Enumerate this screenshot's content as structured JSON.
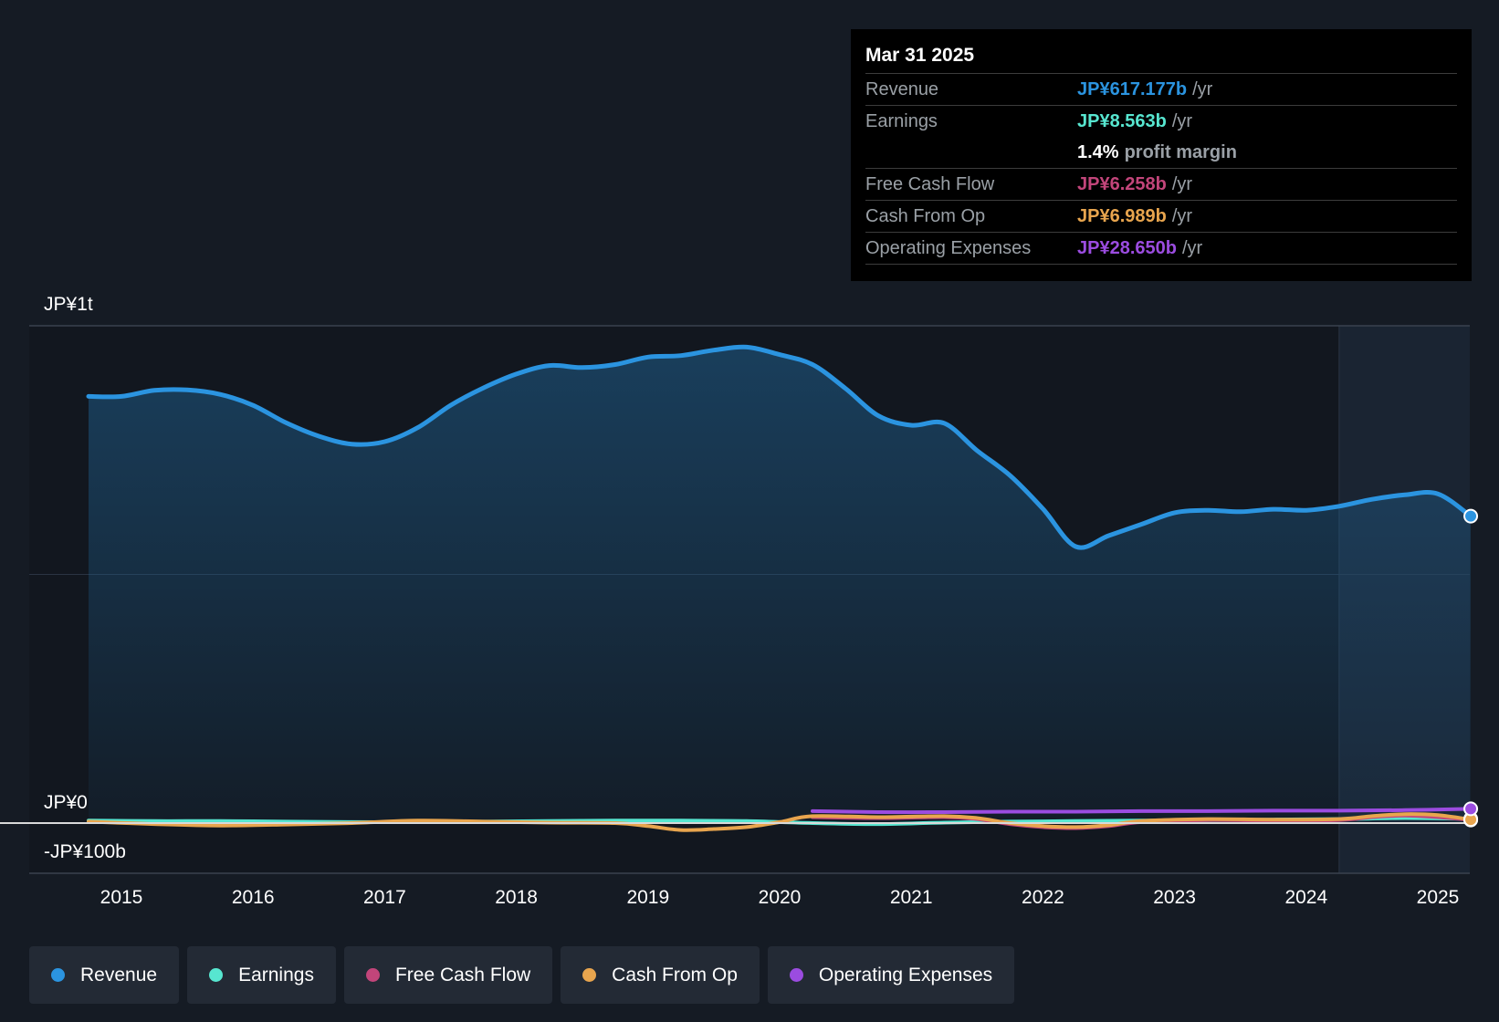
{
  "chart_data": {
    "type": "line",
    "y_axis": {
      "top_label": "JP¥1t",
      "zero_label": "JP¥0",
      "bottom_label": "-JP¥100b",
      "ylim": [
        -100,
        1000
      ],
      "unit": "JP¥ billions"
    },
    "x_ticks": [
      "2015",
      "2016",
      "2017",
      "2018",
      "2019",
      "2020",
      "2021",
      "2022",
      "2023",
      "2024",
      "2025"
    ],
    "xlim": [
      2014.3,
      2025.25
    ],
    "grid": true,
    "forecast_start": 2024.25,
    "series": [
      {
        "name": "Revenue",
        "color": "#2b94e0",
        "area": true,
        "points": [
          [
            2014.75,
            858
          ],
          [
            2015.0,
            858
          ],
          [
            2015.25,
            870
          ],
          [
            2015.5,
            871
          ],
          [
            2015.75,
            862
          ],
          [
            2016.0,
            840
          ],
          [
            2016.25,
            805
          ],
          [
            2016.5,
            778
          ],
          [
            2016.75,
            762
          ],
          [
            2017.0,
            767
          ],
          [
            2017.25,
            795
          ],
          [
            2017.5,
            840
          ],
          [
            2017.75,
            875
          ],
          [
            2018.0,
            903
          ],
          [
            2018.25,
            920
          ],
          [
            2018.5,
            916
          ],
          [
            2018.75,
            922
          ],
          [
            2019.0,
            937
          ],
          [
            2019.25,
            940
          ],
          [
            2019.5,
            951
          ],
          [
            2019.75,
            957
          ],
          [
            2020.0,
            942
          ],
          [
            2020.25,
            922
          ],
          [
            2020.5,
            874
          ],
          [
            2020.75,
            819
          ],
          [
            2021.0,
            800
          ],
          [
            2021.25,
            804
          ],
          [
            2021.5,
            749
          ],
          [
            2021.75,
            699
          ],
          [
            2022.0,
            632
          ],
          [
            2022.25,
            556
          ],
          [
            2022.5,
            578
          ],
          [
            2022.75,
            601
          ],
          [
            2023.0,
            624
          ],
          [
            2023.25,
            629
          ],
          [
            2023.5,
            626
          ],
          [
            2023.75,
            631
          ],
          [
            2024.0,
            629
          ],
          [
            2024.25,
            637
          ],
          [
            2024.5,
            651
          ],
          [
            2024.75,
            660
          ],
          [
            2025.0,
            662
          ],
          [
            2025.25,
            617.177
          ]
        ]
      },
      {
        "name": "Earnings",
        "color": "#57e6d0",
        "area": false,
        "points": [
          [
            2014.75,
            5
          ],
          [
            2015.25,
            4
          ],
          [
            2015.75,
            4
          ],
          [
            2016.25,
            3
          ],
          [
            2016.75,
            2
          ],
          [
            2017.25,
            2
          ],
          [
            2017.75,
            3
          ],
          [
            2018.25,
            4
          ],
          [
            2018.75,
            5
          ],
          [
            2019.25,
            5
          ],
          [
            2019.75,
            4
          ],
          [
            2020.25,
            0
          ],
          [
            2020.75,
            -2
          ],
          [
            2021.25,
            1
          ],
          [
            2021.75,
            3
          ],
          [
            2022.25,
            4
          ],
          [
            2022.75,
            5
          ],
          [
            2023.25,
            6
          ],
          [
            2023.75,
            7
          ],
          [
            2024.25,
            8
          ],
          [
            2024.75,
            10
          ],
          [
            2025.25,
            8.563
          ]
        ]
      },
      {
        "name": "Free Cash Flow",
        "color": "#c2457a",
        "area": false,
        "points": [
          [
            2020.25,
            12
          ],
          [
            2020.75,
            10
          ],
          [
            2021.25,
            12
          ],
          [
            2021.5,
            8
          ],
          [
            2021.75,
            -2
          ],
          [
            2022.0,
            -8
          ],
          [
            2022.25,
            -10
          ],
          [
            2022.5,
            -6
          ],
          [
            2022.75,
            2
          ],
          [
            2023.25,
            6
          ],
          [
            2023.75,
            5
          ],
          [
            2024.25,
            6
          ],
          [
            2024.5,
            12
          ],
          [
            2024.75,
            15
          ],
          [
            2025.0,
            12
          ],
          [
            2025.25,
            6.258
          ]
        ]
      },
      {
        "name": "Cash From Op",
        "color": "#e8a54e",
        "area": false,
        "points": [
          [
            2014.75,
            3
          ],
          [
            2015.25,
            -2
          ],
          [
            2015.75,
            -5
          ],
          [
            2016.25,
            -3
          ],
          [
            2016.75,
            0
          ],
          [
            2017.25,
            5
          ],
          [
            2017.75,
            3
          ],
          [
            2018.25,
            1
          ],
          [
            2018.75,
            0
          ],
          [
            2019.0,
            -6
          ],
          [
            2019.25,
            -14
          ],
          [
            2019.5,
            -12
          ],
          [
            2019.75,
            -8
          ],
          [
            2020.0,
            2
          ],
          [
            2020.25,
            14
          ],
          [
            2020.75,
            12
          ],
          [
            2021.25,
            14
          ],
          [
            2021.5,
            10
          ],
          [
            2021.75,
            0
          ],
          [
            2022.0,
            -6
          ],
          [
            2022.25,
            -8
          ],
          [
            2022.5,
            -4
          ],
          [
            2022.75,
            4
          ],
          [
            2023.25,
            8
          ],
          [
            2023.75,
            7
          ],
          [
            2024.25,
            8
          ],
          [
            2024.5,
            14
          ],
          [
            2024.75,
            18
          ],
          [
            2025.0,
            16
          ],
          [
            2025.25,
            6.989
          ]
        ]
      },
      {
        "name": "Operating Expenses",
        "color": "#9b4ce0",
        "area": false,
        "points": [
          [
            2020.25,
            24
          ],
          [
            2020.75,
            22
          ],
          [
            2021.25,
            22
          ],
          [
            2021.75,
            23
          ],
          [
            2022.25,
            23
          ],
          [
            2022.75,
            24
          ],
          [
            2023.25,
            24
          ],
          [
            2023.75,
            25
          ],
          [
            2024.25,
            25
          ],
          [
            2024.75,
            26
          ],
          [
            2025.25,
            28.65
          ]
        ]
      }
    ]
  },
  "tooltip": {
    "date": "Mar 31 2025",
    "revenue_label": "Revenue",
    "revenue_value": "JP¥617.177b",
    "revenue_unit": "/yr",
    "earnings_label": "Earnings",
    "earnings_value": "JP¥8.563b",
    "earnings_unit": "/yr",
    "margin_value": "1.4%",
    "margin_label": "profit margin",
    "fcf_label": "Free Cash Flow",
    "fcf_value": "JP¥6.258b",
    "fcf_unit": "/yr",
    "cfo_label": "Cash From Op",
    "cfo_value": "JP¥6.989b",
    "cfo_unit": "/yr",
    "opex_label": "Operating Expenses",
    "opex_value": "JP¥28.650b",
    "opex_unit": "/yr"
  },
  "legend": [
    {
      "label": "Revenue",
      "color": "#2b94e0"
    },
    {
      "label": "Earnings",
      "color": "#57e6d0"
    },
    {
      "label": "Free Cash Flow",
      "color": "#c2457a"
    },
    {
      "label": "Cash From Op",
      "color": "#e8a54e"
    },
    {
      "label": "Operating Expenses",
      "color": "#9b4ce0"
    }
  ]
}
